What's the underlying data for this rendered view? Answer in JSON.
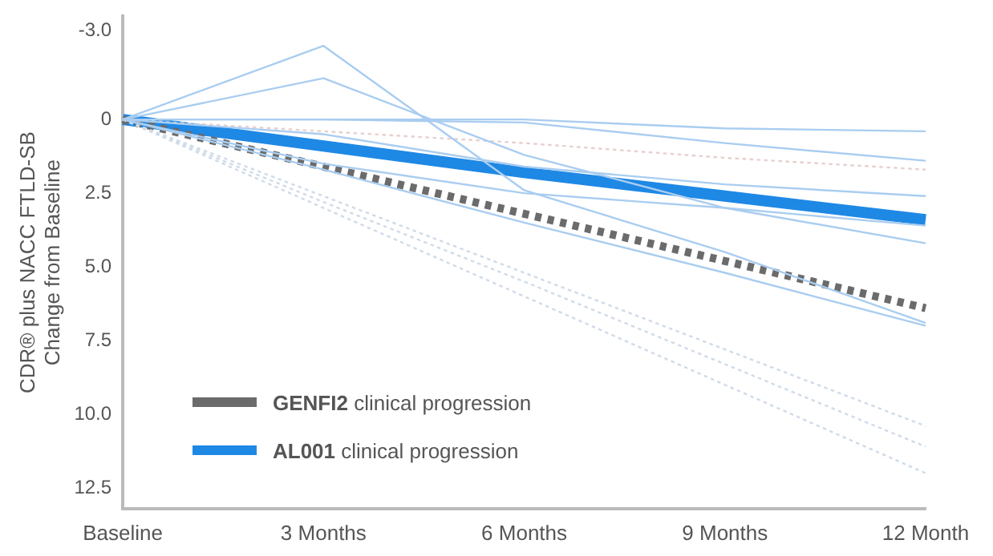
{
  "chart_data": {
    "type": "line",
    "ylabel": "CDR® plus NACC FTLD-SB Change from Baseline",
    "categories": [
      "Baseline",
      "3 Months",
      "6 Months",
      "9 Months",
      "12 Month"
    ],
    "ylim": [
      13.2,
      -3.5
    ],
    "yticks": [
      {
        "value": -3,
        "label": "-3.0"
      },
      0,
      2.5,
      {
        "value": 5,
        "label": "5.0"
      },
      7.5,
      {
        "value": 10,
        "label": "10.0"
      },
      12.5
    ],
    "grid": false,
    "marker": "none",
    "legend": "bottom left",
    "series": [
      {
        "color": "#a9cdf0",
        "line_style": "solid",
        "values": [
          0,
          -2.5,
          2.4,
          4.5,
          6.9
        ]
      },
      {
        "color": "#a9cdf0",
        "line_style": "solid",
        "values": [
          0,
          -1.4,
          1.2,
          3.0,
          4.2
        ]
      },
      {
        "color": "#a9cdf0",
        "line_style": "solid",
        "values": [
          0,
          0,
          0,
          0.3,
          0.4
        ]
      },
      {
        "color": "#a9cdf0",
        "line_style": "solid",
        "values": [
          0,
          0,
          0.1,
          0.8,
          1.4
        ]
      },
      {
        "color": "#a9cdf0",
        "line_style": "solid",
        "values": [
          0,
          0.5,
          1.6,
          2.2,
          2.6
        ]
      },
      {
        "color": "#a9cdf0",
        "line_style": "solid",
        "values": [
          0,
          1.5,
          2.5,
          3.0,
          3.6
        ]
      },
      {
        "color": "#a9cdf0",
        "line_style": "solid",
        "values": [
          0,
          1.7,
          3.5,
          5.2,
          7.0
        ]
      },
      {
        "color": "#cfdbe8",
        "line_style": "dotted",
        "values": [
          0,
          2.6,
          5.2,
          7.8,
          10.4
        ]
      },
      {
        "color": "#cfdbe8",
        "line_style": "dotted",
        "values": [
          0,
          2.8,
          5.5,
          8.3,
          11.1
        ]
      },
      {
        "color": "#cfdbe8",
        "line_style": "dotted",
        "values": [
          0,
          3.0,
          6.0,
          9.0,
          12.0
        ]
      },
      {
        "color": "#e8cfcf",
        "line_style": "dotted",
        "values": [
          0,
          0.4,
          0.8,
          1.3,
          1.7
        ]
      },
      {
        "name": "GENFI2 clinical progression",
        "color": "#6b6b6b",
        "line_style": "dashed",
        "values": [
          0,
          1.6,
          3.2,
          4.8,
          6.4
        ]
      },
      {
        "name": "AL001 clinical progression",
        "color": "#1e88e5",
        "line_style": "solid",
        "values": [
          0,
          0.9,
          1.8,
          2.6,
          3.4
        ]
      }
    ]
  }
}
